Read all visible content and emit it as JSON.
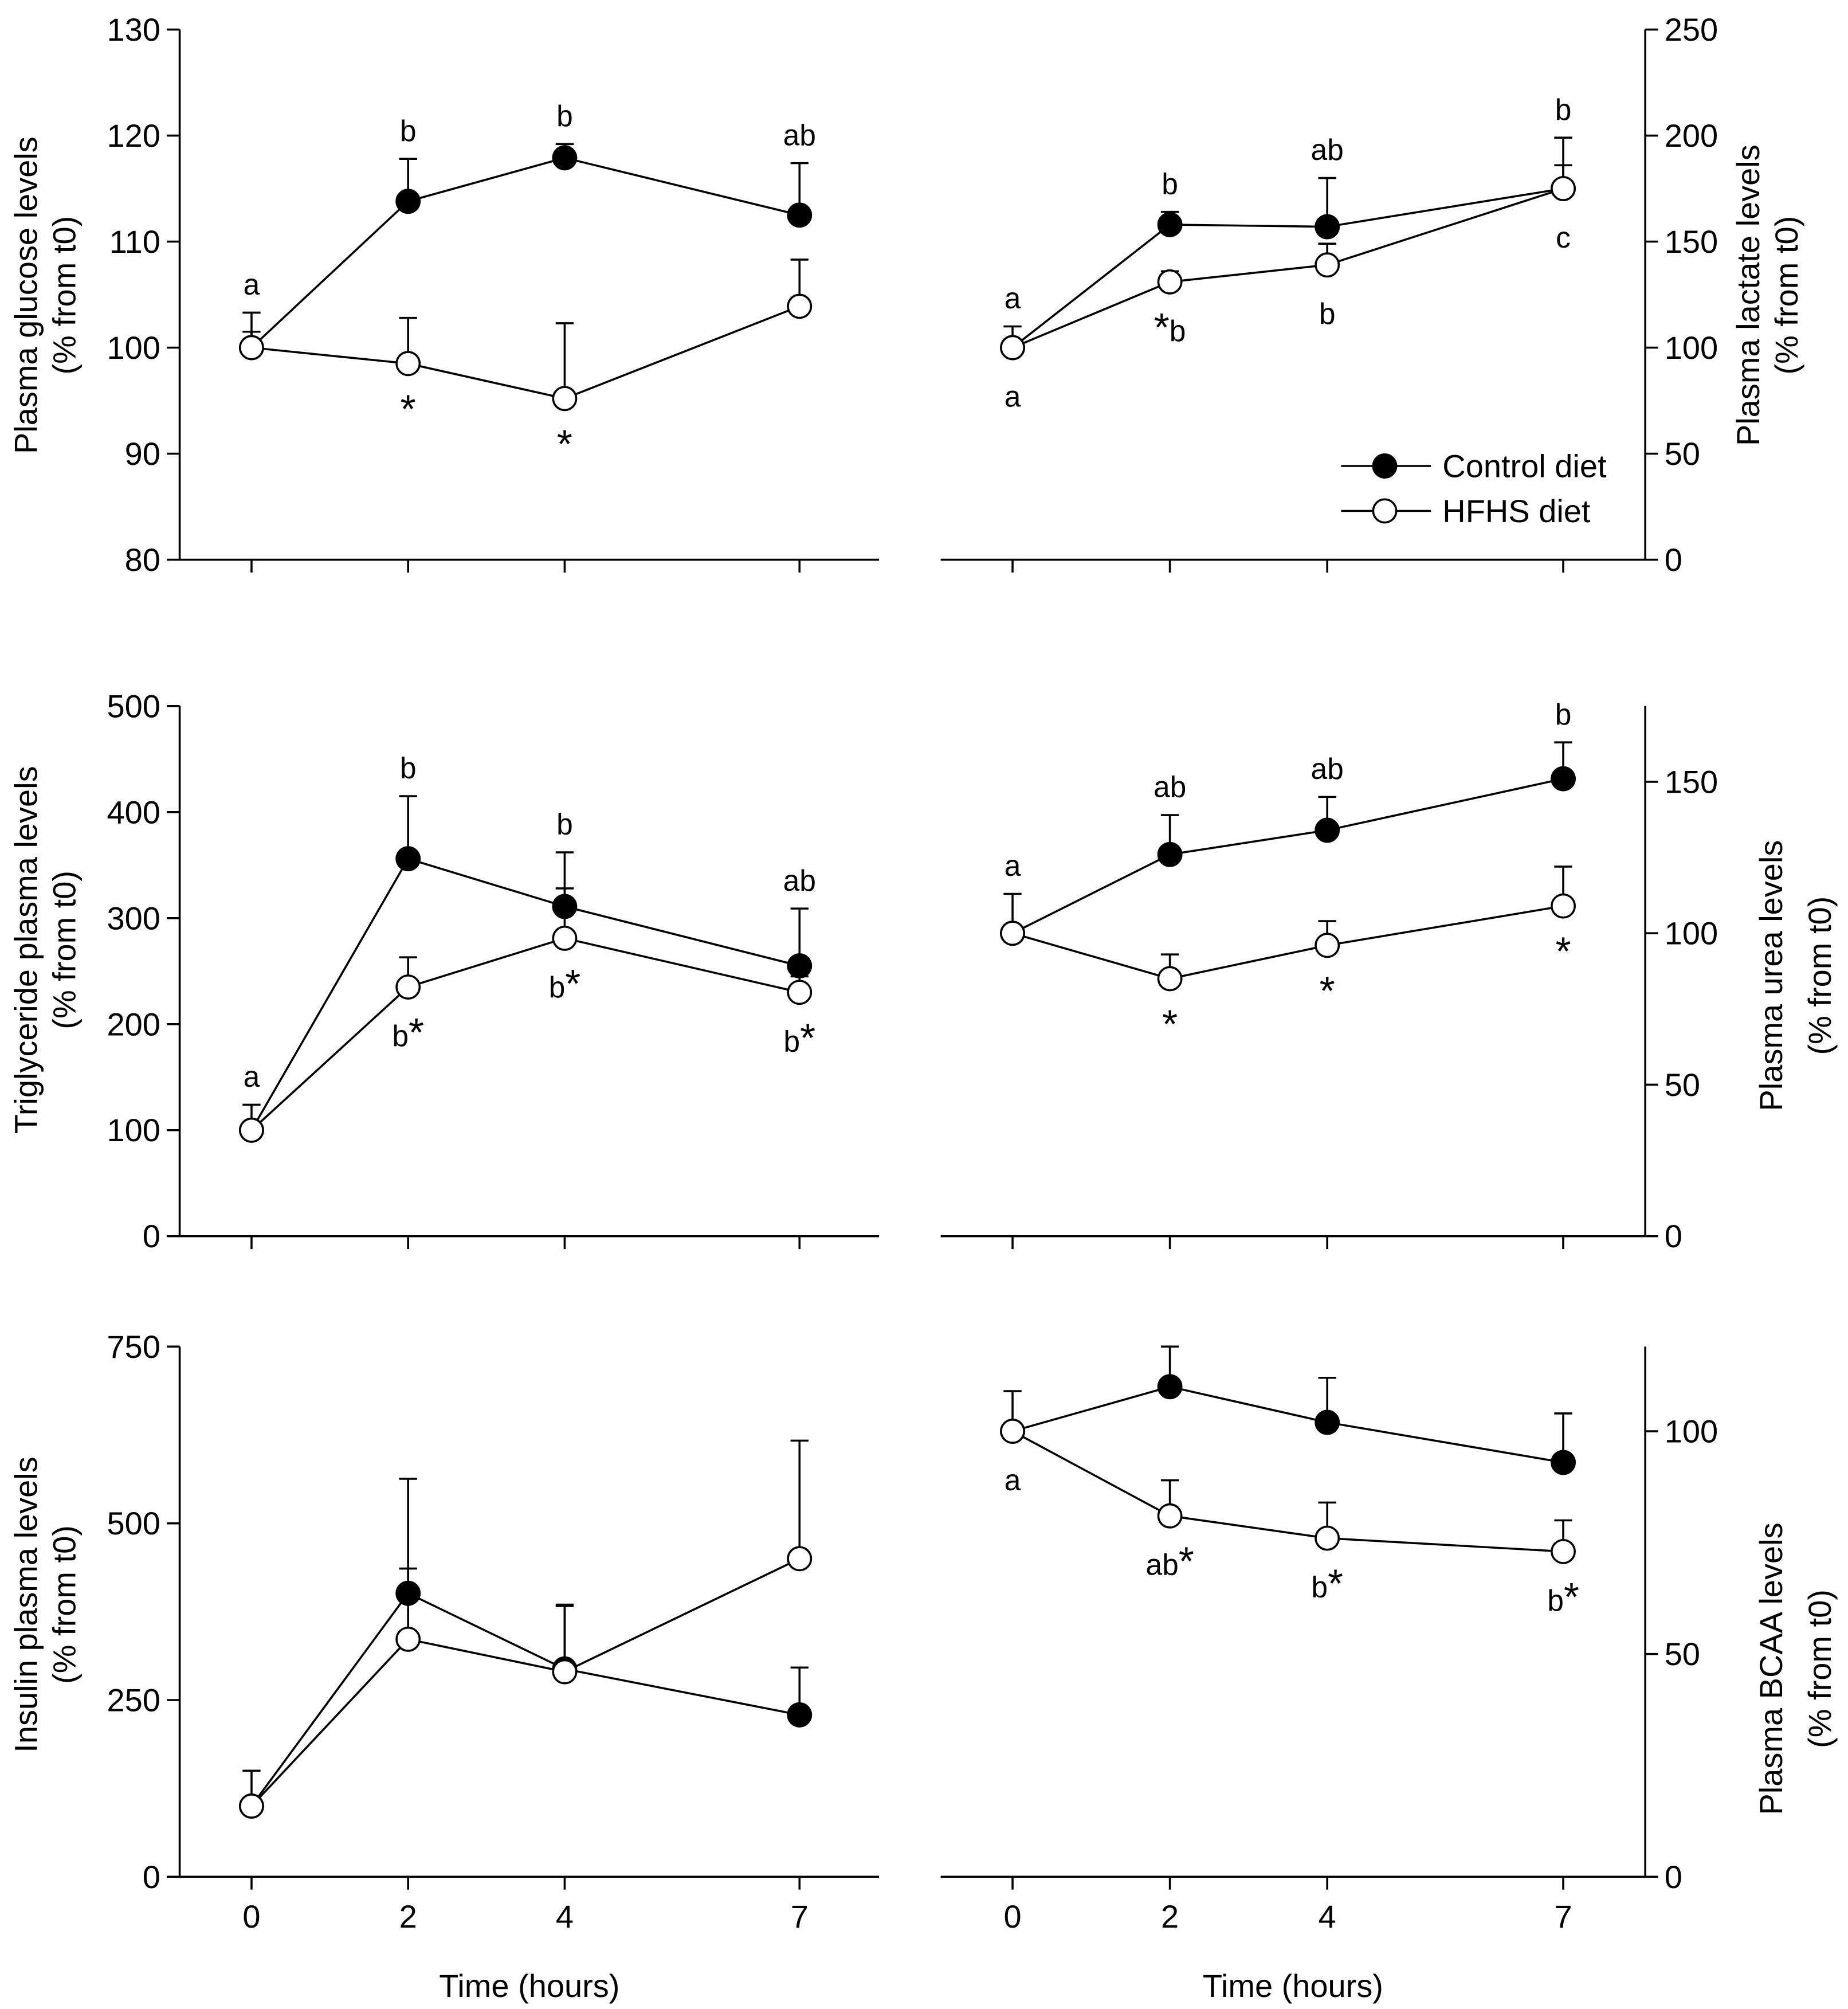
{
  "figure": {
    "background": "#ffffff",
    "ink": "#000000"
  },
  "chart_data": [
    {
      "type": "line",
      "title": "",
      "ylabel": [
        "Plasma glucose levels",
        "(% from t0)"
      ],
      "xlabel": "",
      "x": [
        0,
        2,
        4,
        7
      ],
      "xticklabels": [],
      "ylim": [
        80,
        130
      ],
      "yticks": [
        80,
        90,
        100,
        110,
        120,
        130
      ],
      "axis_side": "left",
      "series": [
        {
          "color": "#000000",
          "values": [
            100,
            113.8,
            117.9,
            112.5
          ],
          "error": [
            3.3,
            4.0,
            1.3,
            4.9
          ],
          "annotation_position": "above",
          "annotations": [
            "a",
            "b",
            "b",
            "ab"
          ]
        },
        {
          "color": "#ffffff",
          "values": [
            100,
            98.5,
            95.2,
            103.9
          ],
          "error": [
            1.5,
            4.3,
            7.1,
            4.4
          ],
          "annotation_position": "below",
          "annotations": [
            "",
            "*",
            "*",
            ""
          ]
        }
      ]
    },
    {
      "type": "line",
      "title": "",
      "ylabel": [
        "Plasma lactate levels",
        "(% from t0)"
      ],
      "xlabel": "",
      "x": [
        0,
        2,
        4,
        7
      ],
      "xticklabels": [],
      "ylim": [
        0,
        250
      ],
      "yticks": [
        0,
        50,
        100,
        150,
        200,
        250
      ],
      "axis_side": "right",
      "legend": {
        "position": "lower-right",
        "entries": [
          "Control diet",
          "HFHS diet"
        ]
      },
      "series": [
        {
          "color": "#000000",
          "values": [
            100,
            158,
            157,
            175
          ],
          "error": [
            10,
            6,
            23,
            24
          ],
          "annotation_position": "above",
          "annotations": [
            "a",
            "b",
            "ab",
            "b"
          ]
        },
        {
          "color": "#ffffff",
          "values": [
            100,
            131,
            139,
            175
          ],
          "error": [
            0,
            5,
            10,
            11
          ],
          "annotation_position": "below",
          "annotations": [
            "a",
            "*b",
            "b",
            "c"
          ]
        }
      ]
    },
    {
      "type": "line",
      "title": "",
      "ylabel": [
        "Triglyceride plasma levels",
        "(% from t0)"
      ],
      "xlabel": "",
      "x": [
        0,
        2,
        4,
        7
      ],
      "xticklabels": [],
      "ylim": [
        0,
        500
      ],
      "yticks": [
        0,
        100,
        200,
        300,
        400,
        500
      ],
      "axis_side": "left",
      "series": [
        {
          "color": "#000000",
          "values": [
            100,
            356,
            311,
            255
          ],
          "error": [
            24,
            59,
            51,
            54
          ],
          "annotation_position": "above",
          "annotations": [
            "a",
            "b",
            "b",
            "ab"
          ]
        },
        {
          "color": "#ffffff",
          "values": [
            100,
            235,
            281,
            230
          ],
          "error": [
            0,
            28,
            47,
            15
          ],
          "annotation_position": "below",
          "annotations": [
            "",
            "b*",
            "b*",
            "b*"
          ]
        }
      ]
    },
    {
      "type": "line",
      "title": "",
      "ylabel": [
        "Plasma urea levels",
        "(% from t0)"
      ],
      "xlabel": "",
      "x": [
        0,
        2,
        4,
        7
      ],
      "xticklabels": [],
      "ylim": [
        0,
        175
      ],
      "yticks": [
        0,
        50,
        100,
        150
      ],
      "axis_side": "right",
      "series": [
        {
          "color": "#000000",
          "values": [
            100,
            126,
            134,
            151
          ],
          "error": [
            13,
            13,
            11,
            12
          ],
          "annotation_position": "above",
          "annotations": [
            "a",
            "ab",
            "ab",
            "b"
          ]
        },
        {
          "color": "#ffffff",
          "values": [
            100,
            85,
            96,
            109
          ],
          "error": [
            0,
            8,
            8,
            13
          ],
          "annotation_position": "below",
          "annotations": [
            "",
            "*",
            "*",
            "*"
          ]
        }
      ]
    },
    {
      "type": "line",
      "title": "",
      "ylabel": [
        "Insulin plasma levels",
        "(% from t0)"
      ],
      "xlabel": "Time (hours)",
      "x": [
        0,
        2,
        4,
        7
      ],
      "xticklabels": [
        "0",
        "2",
        "4",
        "7"
      ],
      "ylim": [
        0,
        750
      ],
      "yticks": [
        0,
        250,
        500,
        750
      ],
      "axis_side": "left",
      "series": [
        {
          "color": "#000000",
          "values": [
            100,
            401,
            294,
            229
          ],
          "error": [
            0,
            162,
            91,
            67
          ],
          "annotation_position": "above",
          "annotations": [
            "",
            "",
            "",
            ""
          ]
        },
        {
          "color": "#ffffff",
          "values": [
            100,
            336,
            290,
            450
          ],
          "error": [
            50,
            100,
            93,
            167
          ],
          "annotation_position": "below",
          "annotations": [
            "",
            "",
            "",
            ""
          ]
        }
      ]
    },
    {
      "type": "line",
      "title": "",
      "ylabel": [
        "Plasma BCAA levels",
        "(% from t0)"
      ],
      "xlabel": "Time (hours)",
      "x": [
        0,
        2,
        4,
        7
      ],
      "xticklabels": [
        "0",
        "2",
        "4",
        "7"
      ],
      "ylim": [
        0,
        119
      ],
      "yticks": [
        0,
        50,
        100
      ],
      "axis_side": "right",
      "series": [
        {
          "color": "#000000",
          "values": [
            100,
            110,
            102,
            93
          ],
          "error": [
            9,
            9,
            10,
            11
          ],
          "annotation_position": "above",
          "annotations": [
            "",
            "",
            "",
            ""
          ]
        },
        {
          "color": "#ffffff",
          "values": [
            100,
            81,
            76,
            73
          ],
          "error": [
            0,
            8,
            8,
            7
          ],
          "annotation_position": "below",
          "annotations": [
            "a",
            "ab*",
            "b*",
            "b*"
          ]
        }
      ]
    }
  ]
}
